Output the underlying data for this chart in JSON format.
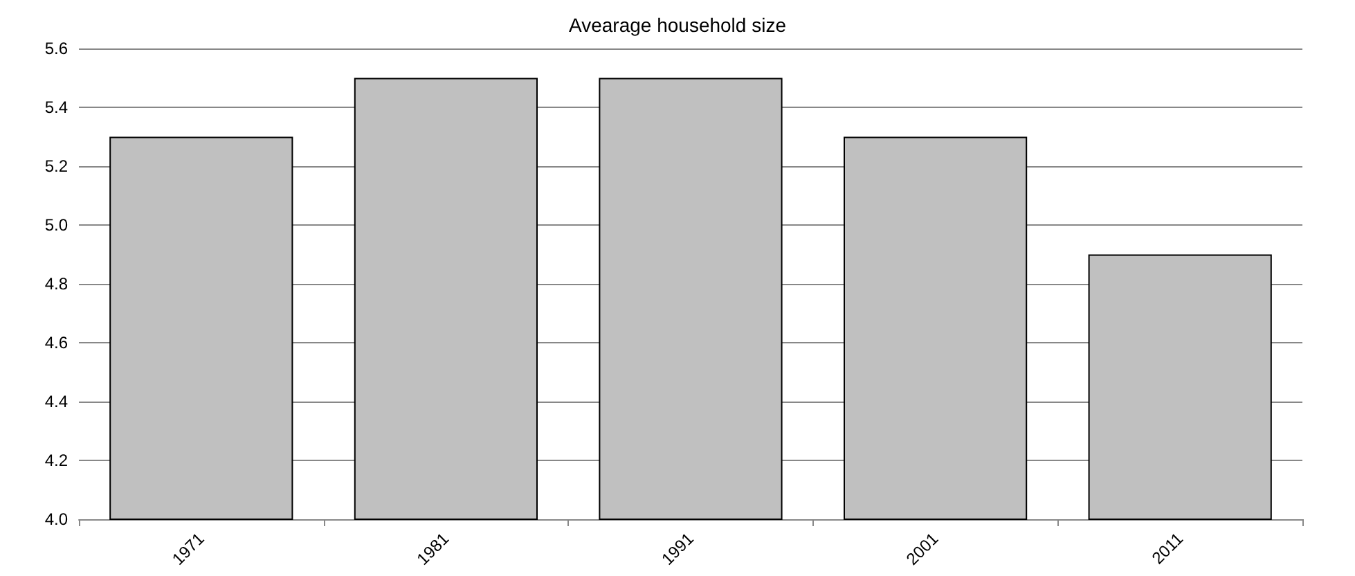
{
  "chart_data": {
    "type": "bar",
    "title": "Avearage household size",
    "categories": [
      "1971",
      "1981",
      "1991",
      "2001",
      "2011"
    ],
    "values": [
      5.3,
      5.5,
      5.5,
      5.3,
      4.9
    ],
    "color": "#c0c0c0",
    "ylim": [
      4.0,
      5.6
    ],
    "yticks": [
      {
        "value": 4.0,
        "label": "4.0"
      },
      {
        "value": 4.2,
        "label": "4.2"
      },
      {
        "value": 4.4,
        "label": "4.4"
      },
      {
        "value": 4.6,
        "label": "4.6"
      },
      {
        "value": 4.8,
        "label": "4.8"
      },
      {
        "value": 5.0,
        "label": "5.0"
      },
      {
        "value": 5.2,
        "label": "5.2"
      },
      {
        "value": 5.4,
        "label": "5.4"
      },
      {
        "value": 5.6,
        "label": "5.6"
      }
    ],
    "grid": "y"
  }
}
